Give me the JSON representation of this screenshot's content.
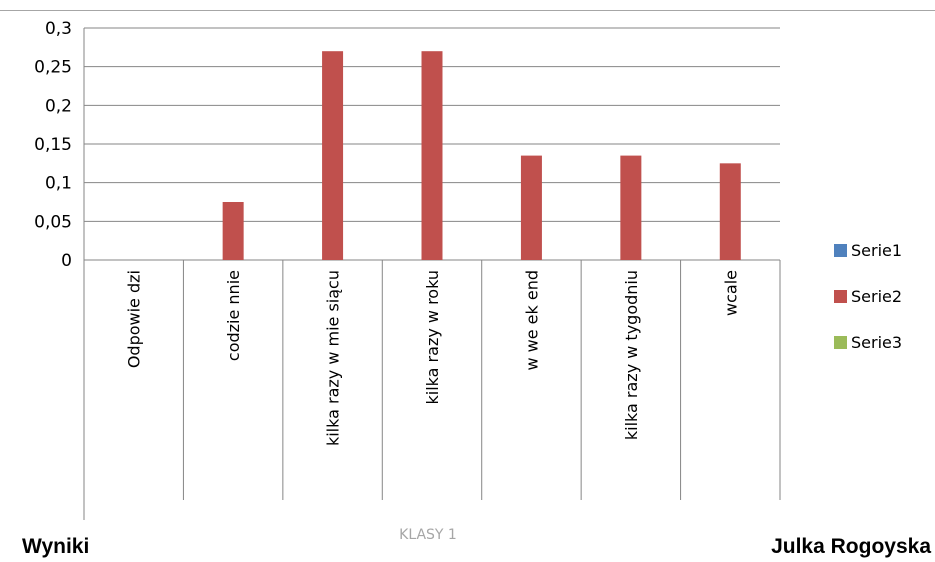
{
  "chart_data": {
    "type": "bar",
    "categories": [
      "Odpowiedzi",
      "codziennie",
      "kilka razy w miesiącu",
      "kilka razy w roku",
      "w weekend",
      "kilka razy w tygodniu",
      "wcale"
    ],
    "category_labels": [
      "Odpowie dzi",
      "codzie nnie",
      "kilka razy w mie siącu",
      "kilka razy w roku",
      "w we ek end",
      "kilka razy w tygodniu",
      "wcale"
    ],
    "series": [
      {
        "name": "Serie1",
        "color": "#4f81bd",
        "values": [
          0,
          0,
          0,
          0,
          0,
          0,
          0
        ]
      },
      {
        "name": "Serie2",
        "color": "#c0504d",
        "values": [
          0,
          0.075,
          0.27,
          0.27,
          0.135,
          0.135,
          0.125
        ]
      },
      {
        "name": "Serie3",
        "color": "#9bbb59",
        "values": [
          0,
          0,
          0,
          0,
          0,
          0,
          0
        ]
      }
    ],
    "y_ticks": [
      "0",
      "0,05",
      "0,1",
      "0,15",
      "0,2",
      "0,25",
      "0,3"
    ],
    "ylim": [
      0,
      0.3
    ],
    "xlabel": "KLASY 1",
    "grid": true,
    "legend_position": "right"
  },
  "footer": {
    "left": "Wyniki",
    "right": "Julka Rogoyska"
  }
}
